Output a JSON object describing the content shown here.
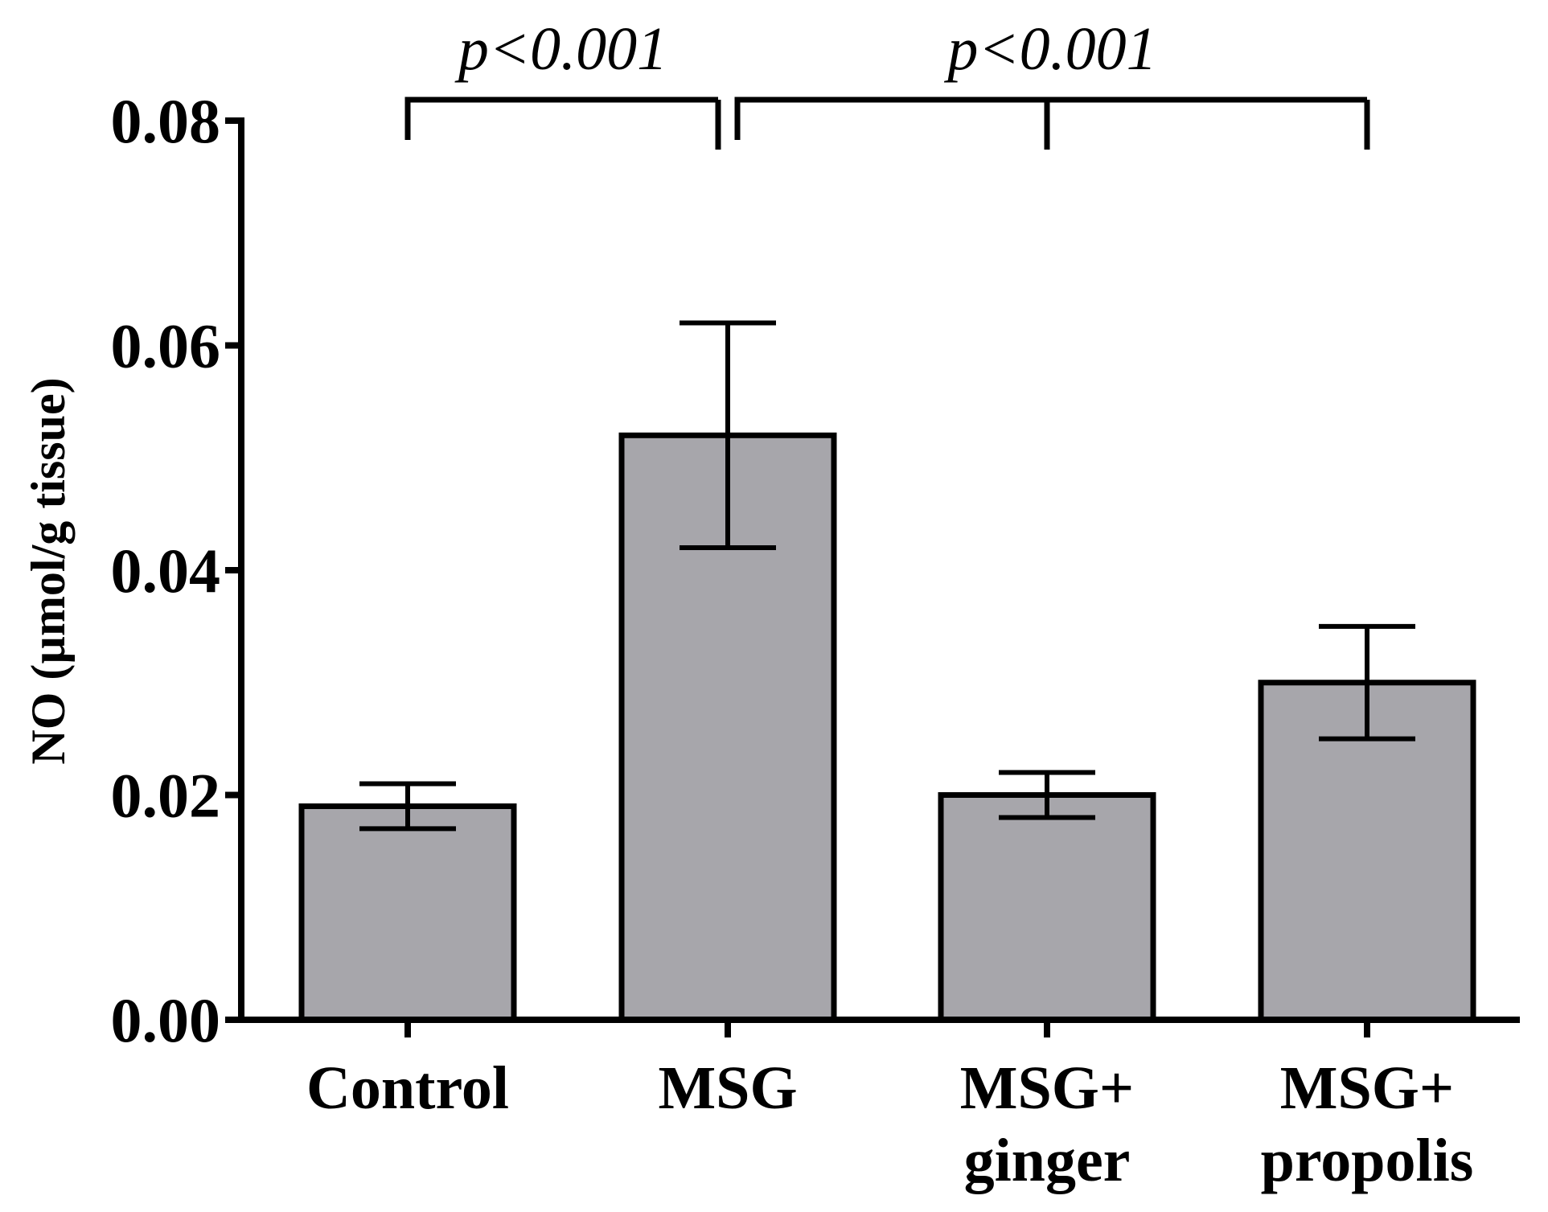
{
  "chart_data": {
    "type": "bar",
    "title": "",
    "xlabel": "",
    "ylabel": "NO (µmol/g tissue)",
    "ylim": [
      0,
      0.08
    ],
    "yticks": [
      "0.00",
      "0.02",
      "0.04",
      "0.06",
      "0.08"
    ],
    "categories": [
      {
        "line1": "Control",
        "line2": ""
      },
      {
        "line1": "MSG",
        "line2": ""
      },
      {
        "line1": "MSG+",
        "line2": "ginger"
      },
      {
        "line1": "MSG+",
        "line2": "propolis"
      }
    ],
    "values": [
      0.019,
      0.052,
      0.02,
      0.03
    ],
    "error_bars": [
      0.002,
      0.01,
      0.002,
      0.005
    ],
    "significance": [
      {
        "label": "p<0.001",
        "from": 0,
        "to": [
          1
        ]
      },
      {
        "label": "p<0.001",
        "from": 1,
        "to": [
          2,
          3
        ]
      }
    ],
    "colors": {
      "bar_fill": "#a7a6ab",
      "stroke": "#000000",
      "background": "#ffffff"
    }
  }
}
